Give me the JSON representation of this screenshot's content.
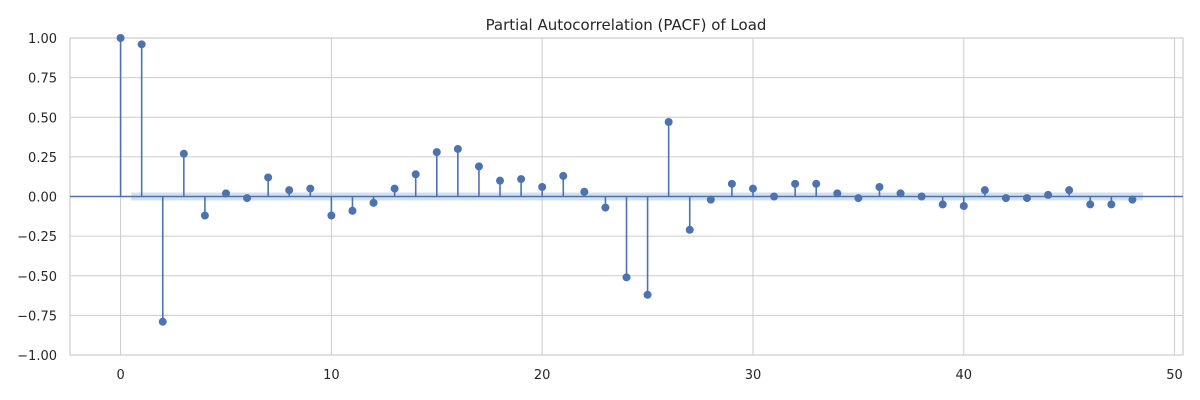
{
  "chart_data": {
    "type": "scatter",
    "subtype": "stem",
    "title": "Partial Autocorrelation (PACF) of Load",
    "xlabel": "",
    "ylabel": "",
    "xlim": [
      -2.4,
      50.4
    ],
    "ylim": [
      -1.0,
      1.0
    ],
    "x_ticks": [
      0,
      10,
      20,
      30,
      40,
      50
    ],
    "x_tick_labels": [
      "0",
      "10",
      "20",
      "30",
      "40",
      "50"
    ],
    "y_ticks": [
      1.0,
      0.75,
      0.5,
      0.25,
      0.0,
      -0.25,
      -0.5,
      -0.75,
      -1.0
    ],
    "y_tick_labels": [
      "1.00",
      "0.75",
      "0.50",
      "0.25",
      "0.00",
      "−0.25",
      "−0.50",
      "−0.75",
      "−1.00"
    ],
    "grid": true,
    "confidence_band": [
      -0.025,
      0.025
    ],
    "colors": {
      "stem": "#4c72b0",
      "band": "#aec6e8",
      "grid": "#cccccc",
      "spine": "#cccccc"
    },
    "series": [
      {
        "lags": [
          0,
          1,
          2,
          3,
          4,
          5,
          6,
          7,
          8,
          9,
          10,
          11,
          12,
          13,
          14,
          15,
          16,
          17,
          18,
          19,
          20,
          21,
          22,
          23,
          24,
          25,
          26,
          27,
          28,
          29,
          30,
          31,
          32,
          33,
          34,
          35,
          36,
          37,
          38,
          39,
          40,
          41,
          42,
          43,
          44,
          45,
          46,
          47,
          48
        ],
        "values": [
          1.0,
          0.96,
          -0.79,
          0.27,
          -0.12,
          0.02,
          -0.01,
          0.12,
          0.04,
          0.05,
          -0.12,
          -0.09,
          -0.04,
          0.05,
          0.14,
          0.28,
          0.3,
          0.19,
          0.1,
          0.11,
          0.06,
          0.13,
          0.03,
          -0.07,
          -0.51,
          -0.62,
          0.47,
          -0.21,
          -0.02,
          0.08,
          0.05,
          0.0,
          0.08,
          0.08,
          0.02,
          -0.01,
          0.06,
          0.02,
          0.0,
          -0.05,
          -0.06,
          0.04,
          -0.01,
          -0.01,
          0.01,
          0.04,
          -0.05,
          -0.05,
          -0.02
        ]
      }
    ]
  }
}
